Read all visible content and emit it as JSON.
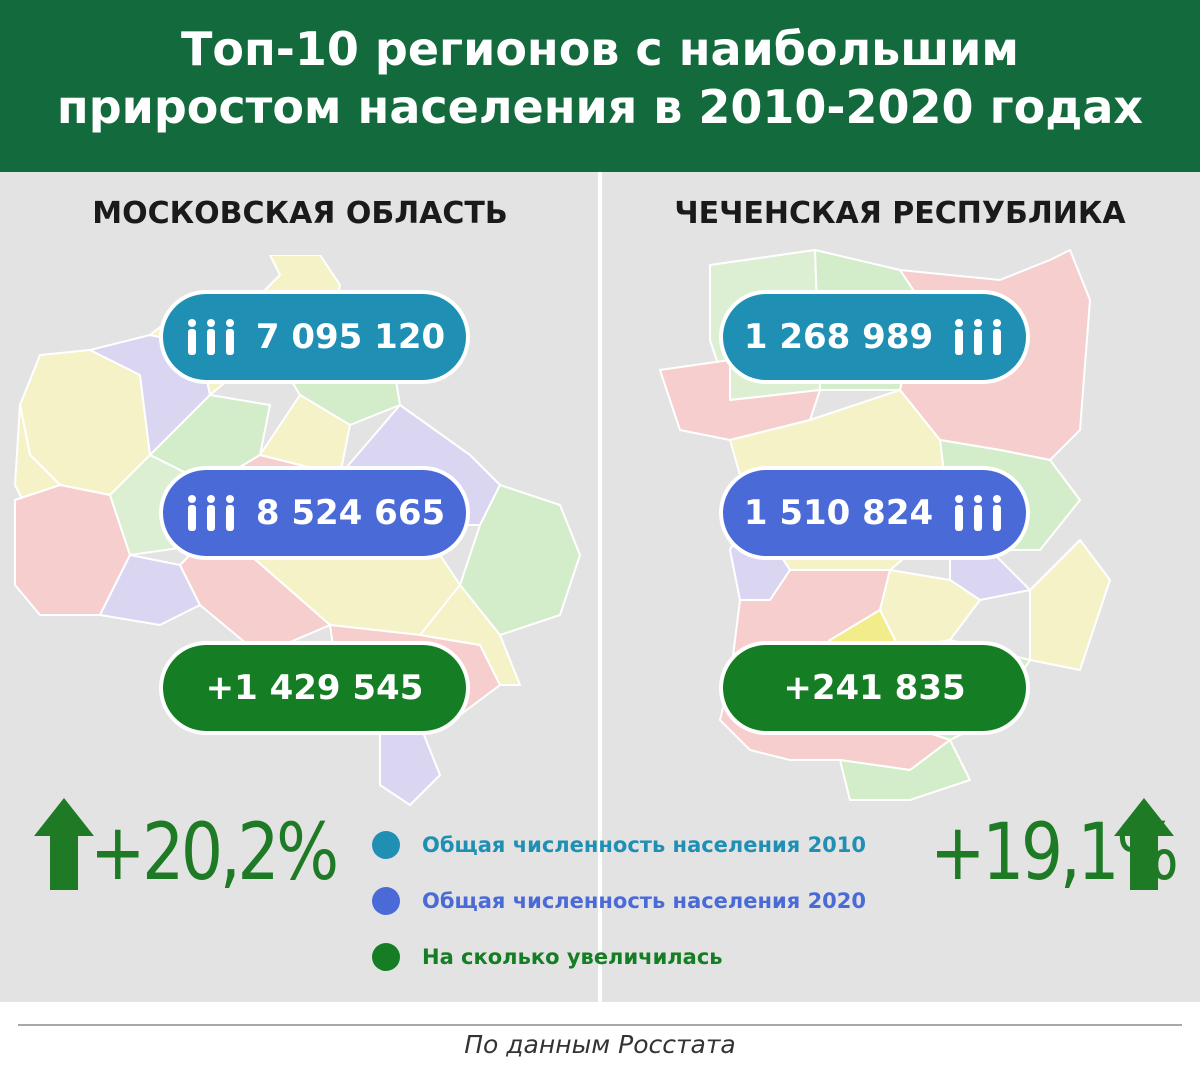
{
  "title": {
    "line1": "Топ-10 регионов с наибольшим",
    "line2": "приростом населения в 2010-2020 годах"
  },
  "regions": [
    {
      "name": "МОСКОВСКАЯ ОБЛАСТЬ",
      "population_2010": "7 095 120",
      "population_2020": "8 524 665",
      "increase": "+1 429 545",
      "growth_percent": "+20,2%"
    },
    {
      "name": "ЧЕЧЕНСКАЯ РЕСПУБЛИКА",
      "population_2010": "1 268 989",
      "population_2020": "1 510 824",
      "increase": "+241 835",
      "growth_percent": "+19,1%"
    }
  ],
  "legend": [
    {
      "label": "Общая численность населения 2010",
      "color": "#1f8fb3"
    },
    {
      "label": "Общая численность населения 2020",
      "color": "#4a6ad8"
    },
    {
      "label": "На сколько увеличилась",
      "color": "#157d23"
    }
  ],
  "colors": {
    "header": "#136a3c",
    "panel": "#e3e3e3",
    "growth_green": "#1e7a25"
  },
  "source": "По данным Росстата"
}
